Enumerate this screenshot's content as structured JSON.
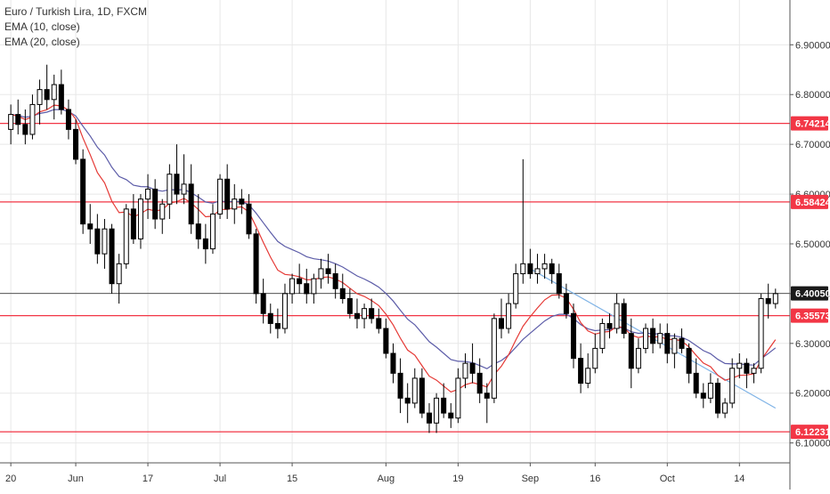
{
  "chart_data": {
    "type": "candlestick",
    "title": "Euro / Turkish Lira, 1D, FXCM",
    "indicators": [
      "EMA (10, close)",
      "EMA (20, close)"
    ],
    "colors": {
      "up_body": "#ffffff",
      "down_body": "#000000",
      "wick": "#000000",
      "ema10": "#e53935",
      "ema20": "#5c5ca8",
      "level_line": "#f23645",
      "trendline": "#7fb3e6",
      "grid": "#e8e8e8",
      "axis_text": "#333333"
    },
    "ylim": [
      6.06,
      6.99
    ],
    "y_ticks": [
      "6.10000",
      "6.20000",
      "6.30000",
      "6.40000",
      "6.50000",
      "6.60000",
      "6.70000",
      "6.80000",
      "6.90000"
    ],
    "x_ticks": [
      {
        "label": "20",
        "index": 0
      },
      {
        "label": "Jun",
        "index": 9
      },
      {
        "label": "17",
        "index": 19
      },
      {
        "label": "Jul",
        "index": 29
      },
      {
        "label": "15",
        "index": 39
      },
      {
        "label": "Aug",
        "index": 52
      },
      {
        "label": "19",
        "index": 62
      },
      {
        "label": "Sep",
        "index": 72
      },
      {
        "label": "16",
        "index": 81
      },
      {
        "label": "Oct",
        "index": 91
      },
      {
        "label": "14",
        "index": 101
      }
    ],
    "x_domain": [
      -1.5,
      108
    ],
    "levels": [
      {
        "label": "6.74214",
        "value": 6.74214
      },
      {
        "label": "6.58424",
        "value": 6.58424
      },
      {
        "label": "6.35573",
        "value": 6.35573
      },
      {
        "label": "6.12231",
        "value": 6.12231
      }
    ],
    "last_price": {
      "label": "6.40050",
      "value": 6.4005
    },
    "trendline": {
      "start": {
        "index": 72,
        "value": 6.45
      },
      "end": {
        "index": 106,
        "value": 6.17
      }
    },
    "candles": [
      [
        6.73,
        6.78,
        6.7,
        6.76
      ],
      [
        6.76,
        6.79,
        6.72,
        6.74
      ],
      [
        6.74,
        6.77,
        6.7,
        6.72
      ],
      [
        6.72,
        6.8,
        6.71,
        6.78
      ],
      [
        6.78,
        6.83,
        6.74,
        6.81
      ],
      [
        6.81,
        6.86,
        6.77,
        6.79
      ],
      [
        6.79,
        6.84,
        6.75,
        6.82
      ],
      [
        6.82,
        6.85,
        6.76,
        6.77
      ],
      [
        6.77,
        6.79,
        6.71,
        6.73
      ],
      [
        6.73,
        6.75,
        6.66,
        6.67
      ],
      [
        6.67,
        6.69,
        6.52,
        6.54
      ],
      [
        6.54,
        6.58,
        6.5,
        6.53
      ],
      [
        6.53,
        6.56,
        6.46,
        6.48
      ],
      [
        6.48,
        6.55,
        6.45,
        6.53
      ],
      [
        6.53,
        6.54,
        6.4,
        6.42
      ],
      [
        6.42,
        6.48,
        6.38,
        6.46
      ],
      [
        6.46,
        6.58,
        6.45,
        6.57
      ],
      [
        6.57,
        6.6,
        6.5,
        6.51
      ],
      [
        6.51,
        6.6,
        6.49,
        6.59
      ],
      [
        6.59,
        6.64,
        6.55,
        6.61
      ],
      [
        6.61,
        6.63,
        6.53,
        6.55
      ],
      [
        6.55,
        6.59,
        6.52,
        6.58
      ],
      [
        6.58,
        6.66,
        6.55,
        6.64
      ],
      [
        6.64,
        6.7,
        6.58,
        6.6
      ],
      [
        6.6,
        6.68,
        6.58,
        6.62
      ],
      [
        6.62,
        6.66,
        6.52,
        6.54
      ],
      [
        6.54,
        6.6,
        6.49,
        6.51
      ],
      [
        6.51,
        6.54,
        6.46,
        6.49
      ],
      [
        6.49,
        6.58,
        6.48,
        6.56
      ],
      [
        6.56,
        6.64,
        6.55,
        6.63
      ],
      [
        6.63,
        6.66,
        6.55,
        6.57
      ],
      [
        6.57,
        6.62,
        6.54,
        6.59
      ],
      [
        6.59,
        6.61,
        6.56,
        6.58
      ],
      [
        6.58,
        6.6,
        6.51,
        6.52
      ],
      [
        6.52,
        6.53,
        6.38,
        6.4
      ],
      [
        6.4,
        6.43,
        6.34,
        6.36
      ],
      [
        6.36,
        6.38,
        6.32,
        6.34
      ],
      [
        6.34,
        6.37,
        6.31,
        6.33
      ],
      [
        6.33,
        6.42,
        6.32,
        6.4
      ],
      [
        6.4,
        6.44,
        6.38,
        6.43
      ],
      [
        6.43,
        6.46,
        6.4,
        6.42
      ],
      [
        6.42,
        6.45,
        6.38,
        6.4
      ],
      [
        6.4,
        6.44,
        6.38,
        6.43
      ],
      [
        6.43,
        6.47,
        6.41,
        6.45
      ],
      [
        6.45,
        6.48,
        6.42,
        6.44
      ],
      [
        6.44,
        6.46,
        6.39,
        6.41
      ],
      [
        6.41,
        6.44,
        6.38,
        6.39
      ],
      [
        6.39,
        6.41,
        6.35,
        6.36
      ],
      [
        6.36,
        6.39,
        6.33,
        6.35
      ],
      [
        6.35,
        6.38,
        6.33,
        6.37
      ],
      [
        6.37,
        6.39,
        6.34,
        6.35
      ],
      [
        6.35,
        6.37,
        6.32,
        6.33
      ],
      [
        6.33,
        6.35,
        6.27,
        6.28
      ],
      [
        6.28,
        6.3,
        6.22,
        6.24
      ],
      [
        6.24,
        6.27,
        6.16,
        6.19
      ],
      [
        6.19,
        6.22,
        6.14,
        6.18
      ],
      [
        6.18,
        6.25,
        6.17,
        6.23
      ],
      [
        6.23,
        6.25,
        6.15,
        6.16
      ],
      [
        6.16,
        6.18,
        6.12,
        6.14
      ],
      [
        6.14,
        6.2,
        6.12,
        6.19
      ],
      [
        6.19,
        6.22,
        6.15,
        6.16
      ],
      [
        6.16,
        6.18,
        6.13,
        6.15
      ],
      [
        6.15,
        6.25,
        6.14,
        6.23
      ],
      [
        6.23,
        6.28,
        6.21,
        6.26
      ],
      [
        6.26,
        6.3,
        6.22,
        6.24
      ],
      [
        6.24,
        6.27,
        6.18,
        6.2
      ],
      [
        6.2,
        6.22,
        6.14,
        6.19
      ],
      [
        6.19,
        6.36,
        6.18,
        6.35
      ],
      [
        6.35,
        6.39,
        6.31,
        6.33
      ],
      [
        6.33,
        6.4,
        6.32,
        6.38
      ],
      [
        6.38,
        6.46,
        6.37,
        6.44
      ],
      [
        6.44,
        6.67,
        6.42,
        6.46
      ],
      [
        6.46,
        6.49,
        6.43,
        6.44
      ],
      [
        6.44,
        6.48,
        6.42,
        6.45
      ],
      [
        6.45,
        6.48,
        6.43,
        6.46
      ],
      [
        6.46,
        6.47,
        6.42,
        6.44
      ],
      [
        6.44,
        6.46,
        6.39,
        6.4
      ],
      [
        6.4,
        6.42,
        6.35,
        6.36
      ],
      [
        6.36,
        6.38,
        6.25,
        6.27
      ],
      [
        6.27,
        6.3,
        6.2,
        6.22
      ],
      [
        6.22,
        6.28,
        6.21,
        6.25
      ],
      [
        6.25,
        6.32,
        6.24,
        6.29
      ],
      [
        6.29,
        6.35,
        6.28,
        6.34
      ],
      [
        6.34,
        6.36,
        6.31,
        6.33
      ],
      [
        6.33,
        6.4,
        6.32,
        6.38
      ],
      [
        6.38,
        6.39,
        6.31,
        6.32
      ],
      [
        6.32,
        6.35,
        6.21,
        6.25
      ],
      [
        6.25,
        6.31,
        6.24,
        6.29
      ],
      [
        6.29,
        6.34,
        6.28,
        6.33
      ],
      [
        6.33,
        6.35,
        6.28,
        6.3
      ],
      [
        6.3,
        6.34,
        6.29,
        6.32
      ],
      [
        6.32,
        6.34,
        6.26,
        6.28
      ],
      [
        6.28,
        6.32,
        6.25,
        6.31
      ],
      [
        6.31,
        6.33,
        6.28,
        6.29
      ],
      [
        6.29,
        6.3,
        6.22,
        6.24
      ],
      [
        6.24,
        6.27,
        6.19,
        6.2
      ],
      [
        6.2,
        6.22,
        6.17,
        6.19
      ],
      [
        6.19,
        6.24,
        6.18,
        6.22
      ],
      [
        6.22,
        6.23,
        6.15,
        6.16
      ],
      [
        6.16,
        6.19,
        6.15,
        6.18
      ],
      [
        6.18,
        6.27,
        6.17,
        6.25
      ],
      [
        6.25,
        6.28,
        6.23,
        6.26
      ],
      [
        6.26,
        6.27,
        6.21,
        6.24
      ],
      [
        6.24,
        6.26,
        6.22,
        6.25
      ],
      [
        6.25,
        6.4,
        6.24,
        6.39
      ],
      [
        6.39,
        6.42,
        6.35,
        6.38
      ],
      [
        6.38,
        6.41,
        6.37,
        6.4
      ]
    ]
  }
}
